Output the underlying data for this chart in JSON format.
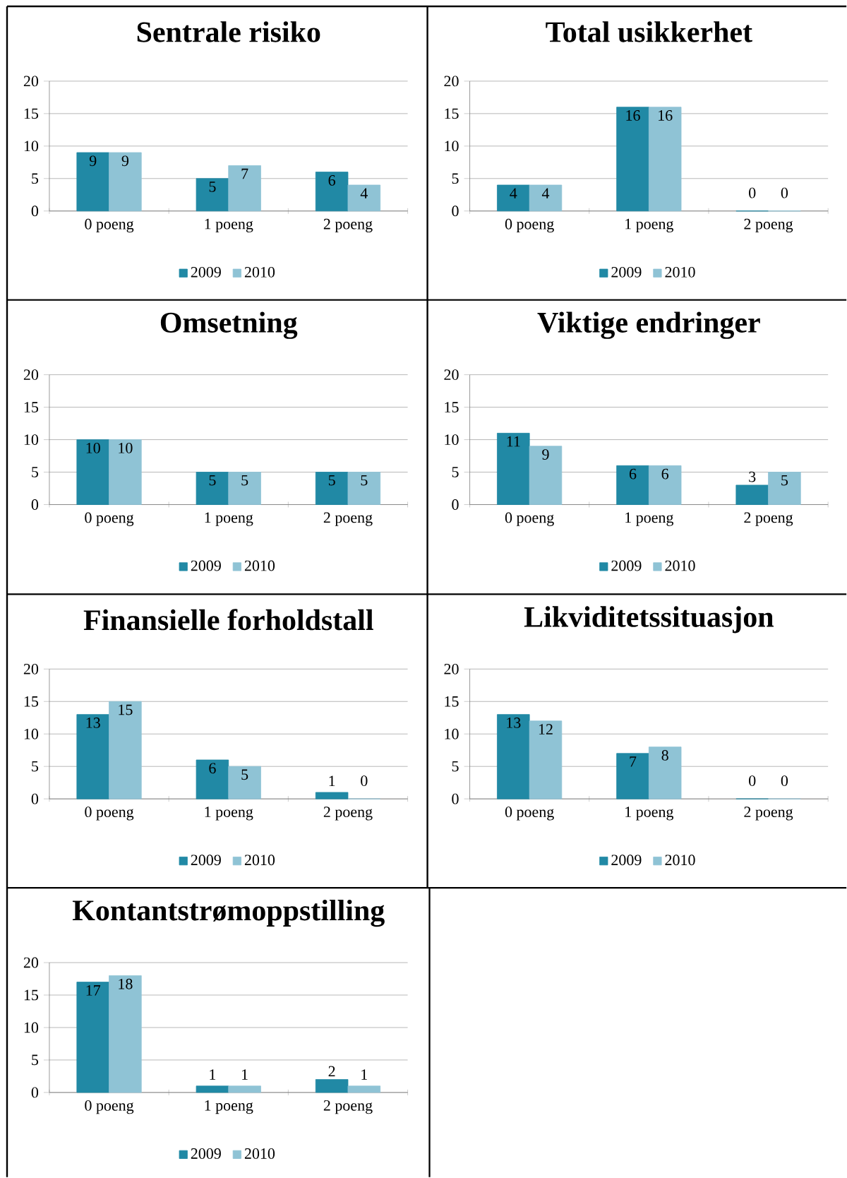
{
  "chart_data": [
    {
      "type": "bar",
      "title": "Sentrale risiko",
      "categories": [
        "0 poeng",
        "1 poeng",
        "2 poeng"
      ],
      "series": [
        {
          "name": "2009",
          "color": "#2189a5",
          "values": [
            9,
            5,
            6
          ]
        },
        {
          "name": "2010",
          "color": "#8fc3d5",
          "values": [
            9,
            7,
            4
          ]
        }
      ],
      "ylim": [
        0,
        20
      ],
      "yticks": [
        0,
        5,
        10,
        15,
        20
      ],
      "grid": "y",
      "legend": "bottom",
      "data_labels": true
    },
    {
      "type": "bar",
      "title": "Total usikkerhet",
      "categories": [
        "0 poeng",
        "1 poeng",
        "2 poeng"
      ],
      "series": [
        {
          "name": "2009",
          "color": "#2189a5",
          "values": [
            4,
            16,
            0
          ]
        },
        {
          "name": "2010",
          "color": "#8fc3d5",
          "values": [
            4,
            16,
            0
          ]
        }
      ],
      "ylim": [
        0,
        20
      ],
      "yticks": [
        0,
        5,
        10,
        15,
        20
      ],
      "grid": "y",
      "legend": "bottom",
      "data_labels": true
    },
    {
      "type": "bar",
      "title": "Omsetning",
      "categories": [
        "0 poeng",
        "1 poeng",
        "2 poeng"
      ],
      "series": [
        {
          "name": "2009",
          "color": "#2189a5",
          "values": [
            10,
            5,
            5
          ]
        },
        {
          "name": "2010",
          "color": "#8fc3d5",
          "values": [
            10,
            5,
            5
          ]
        }
      ],
      "ylim": [
        0,
        20
      ],
      "yticks": [
        0,
        5,
        10,
        15,
        20
      ],
      "grid": "y",
      "legend": "bottom",
      "data_labels": true
    },
    {
      "type": "bar",
      "title": "Viktige endringer",
      "categories": [
        "0 poeng",
        "1 poeng",
        "2 poeng"
      ],
      "series": [
        {
          "name": "2009",
          "color": "#2189a5",
          "values": [
            11,
            6,
            3
          ]
        },
        {
          "name": "2010",
          "color": "#8fc3d5",
          "values": [
            9,
            6,
            5
          ]
        }
      ],
      "ylim": [
        0,
        20
      ],
      "yticks": [
        0,
        5,
        10,
        15,
        20
      ],
      "grid": "y",
      "legend": "bottom",
      "data_labels": true
    },
    {
      "type": "bar",
      "title": "Finansielle forholdstall",
      "categories": [
        "0 poeng",
        "1 poeng",
        "2 poeng"
      ],
      "series": [
        {
          "name": "2009",
          "color": "#2189a5",
          "values": [
            13,
            6,
            1
          ]
        },
        {
          "name": "2010",
          "color": "#8fc3d5",
          "values": [
            15,
            5,
            0
          ]
        }
      ],
      "ylim": [
        0,
        20
      ],
      "yticks": [
        0,
        5,
        10,
        15,
        20
      ],
      "grid": "y",
      "legend": "bottom",
      "data_labels": true
    },
    {
      "type": "bar",
      "title": "Likviditetssituasjon",
      "categories": [
        "0 poeng",
        "1 poeng",
        "2 poeng"
      ],
      "series": [
        {
          "name": "2009",
          "color": "#2189a5",
          "values": [
            13,
            7,
            0
          ]
        },
        {
          "name": "2010",
          "color": "#8fc3d5",
          "values": [
            12,
            8,
            0
          ]
        }
      ],
      "ylim": [
        0,
        20
      ],
      "yticks": [
        0,
        5,
        10,
        15,
        20
      ],
      "grid": "y",
      "legend": "bottom",
      "data_labels": true
    },
    {
      "type": "bar",
      "title": "Kontantstrømoppstilling",
      "categories": [
        "0 poeng",
        "1 poeng",
        "2 poeng"
      ],
      "series": [
        {
          "name": "2009",
          "color": "#2189a5",
          "values": [
            17,
            1,
            2
          ]
        },
        {
          "name": "2010",
          "color": "#8fc3d5",
          "values": [
            18,
            1,
            1
          ]
        }
      ],
      "ylim": [
        0,
        20
      ],
      "yticks": [
        0,
        5,
        10,
        15,
        20
      ],
      "grid": "y",
      "legend": "bottom",
      "data_labels": true
    }
  ]
}
